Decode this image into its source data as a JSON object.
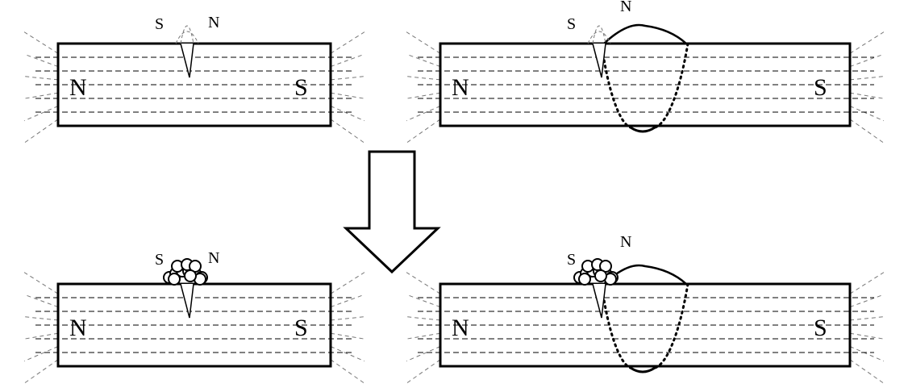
{
  "panels": [
    {
      "id": "top-left",
      "pole_left": "N",
      "pole_right": "S",
      "crack_s": "S",
      "crack_n": "N",
      "weld": false,
      "particles": false
    },
    {
      "id": "top-right",
      "pole_left": "N",
      "pole_right": "S",
      "crack_s": "S",
      "crack_n": "N",
      "weld": true,
      "particles": false
    },
    {
      "id": "bottom-left",
      "pole_left": "N",
      "pole_right": "S",
      "crack_s": "S",
      "crack_n": "N",
      "weld": false,
      "particles": true
    },
    {
      "id": "bottom-right",
      "pole_left": "N",
      "pole_right": "S",
      "crack_s": "S",
      "crack_n": "N",
      "weld": true,
      "particles": true
    }
  ],
  "colors": {
    "stroke": "#000000",
    "dashed": "#000000",
    "fringe": "#777777",
    "background": "#ffffff"
  }
}
